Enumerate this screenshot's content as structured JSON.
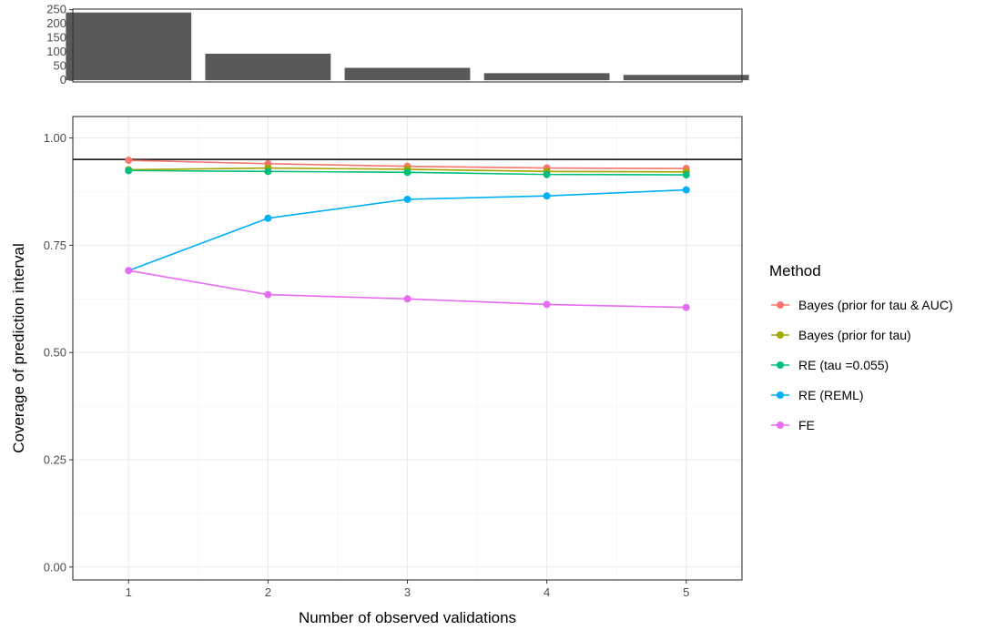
{
  "chart_data": [
    {
      "type": "bar",
      "categories": [
        "1",
        "2",
        "3",
        "4",
        "5"
      ],
      "values": [
        240,
        94,
        44,
        25,
        19
      ],
      "ylim": [
        0,
        250
      ],
      "yticks": [
        "0",
        "50",
        "100",
        "150",
        "200",
        "250"
      ],
      "bar_color": "#595959",
      "grid": false
    },
    {
      "type": "line",
      "x": [
        1,
        2,
        3,
        4,
        5
      ],
      "xlabel": "Number of observed validations",
      "ylabel": "Coverage of prediction interval",
      "ylim": [
        -0.03,
        1.05
      ],
      "xticks": [
        "1",
        "2",
        "3",
        "4",
        "5"
      ],
      "yticks": [
        "0.00",
        "0.25",
        "0.50",
        "0.75",
        "1.00"
      ],
      "reference_line": 0.95,
      "grid": true,
      "legend_position": "right",
      "legend_title": "Method",
      "series": [
        {
          "name": "Bayes (prior for tau & AUC)",
          "color": "#F8766D",
          "values": [
            0.948,
            0.94,
            0.934,
            0.93,
            0.929
          ]
        },
        {
          "name": "Bayes (prior for tau)",
          "color": "#A3A500",
          "values": [
            0.926,
            0.93,
            0.927,
            0.922,
            0.921
          ]
        },
        {
          "name": "RE (tau =0.055)",
          "color": "#00BF7D",
          "values": [
            0.924,
            0.922,
            0.92,
            0.915,
            0.914
          ]
        },
        {
          "name": "RE (REML)",
          "color": "#00B0F6",
          "values": [
            0.691,
            0.813,
            0.857,
            0.865,
            0.879
          ]
        },
        {
          "name": "FE",
          "color": "#E76BF3",
          "values": [
            0.691,
            0.635,
            0.625,
            0.612,
            0.605
          ]
        }
      ]
    }
  ]
}
